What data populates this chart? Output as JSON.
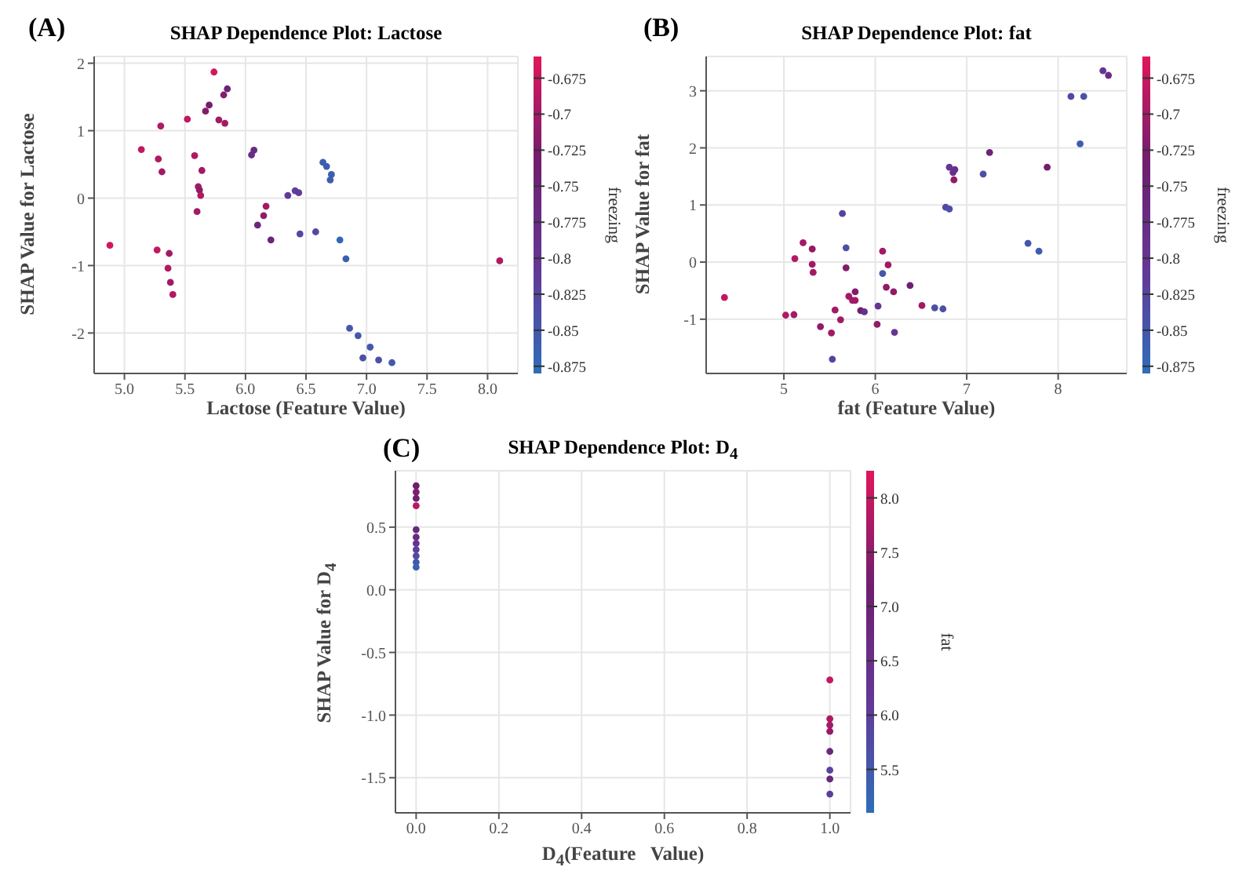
{
  "chart_data": [
    {
      "type": "scatter",
      "title": "SHAP Dependence Plot: Lactose",
      "annotations": [
        "(A)"
      ],
      "xlabel": "Lactose (Feature Value)",
      "ylabel": "SHAP Value for Lactose",
      "clabel": "freezing",
      "marker": "circle",
      "grid": true,
      "xlim": [
        4.75,
        8.25
      ],
      "ylim": [
        -2.6,
        2.1
      ],
      "xticks": [
        {
          "value": 5,
          "label": "5.0"
        },
        5.5,
        {
          "value": 6,
          "label": "6.0"
        },
        6.5,
        {
          "value": 7,
          "label": "7.0"
        },
        7.5,
        {
          "value": 8,
          "label": "8.0"
        }
      ],
      "yticks": [
        -2,
        -1,
        0,
        1,
        2
      ],
      "clim": [
        -0.88,
        -0.66
      ],
      "cticks": [
        -0.875,
        -0.85,
        -0.825,
        -0.8,
        -0.775,
        -0.75,
        -0.725,
        -0.7,
        -0.675
      ],
      "x": [
        4.88,
        5.14,
        5.27,
        5.28,
        5.3,
        5.31,
        5.36,
        5.37,
        5.38,
        5.4,
        5.52,
        5.58,
        5.6,
        5.61,
        5.62,
        5.63,
        5.64,
        5.67,
        5.7,
        5.74,
        5.78,
        5.82,
        5.83,
        5.85,
        6.05,
        6.07,
        6.1,
        6.15,
        6.17,
        6.21,
        6.35,
        6.41,
        6.44,
        6.45,
        6.58,
        6.64,
        6.67,
        6.7,
        6.71,
        6.78,
        6.83,
        6.86,
        6.93,
        6.97,
        7.03,
        7.1,
        7.21,
        8.1
      ],
      "values": [
        -0.7,
        0.72,
        -0.77,
        0.58,
        1.07,
        0.39,
        -1.04,
        -0.82,
        -1.25,
        -1.43,
        1.17,
        0.63,
        -0.2,
        0.17,
        0.12,
        0.04,
        0.41,
        1.29,
        1.38,
        1.87,
        1.16,
        1.53,
        1.11,
        1.62,
        0.64,
        0.71,
        -0.4,
        -0.26,
        -0.12,
        -0.62,
        0.04,
        0.11,
        0.08,
        -0.53,
        -0.5,
        0.53,
        0.47,
        0.27,
        0.35,
        -0.62,
        -0.9,
        -1.93,
        -2.04,
        -2.37,
        -2.21,
        -2.4,
        -2.44,
        -0.93
      ],
      "cvalues": [
        -0.67,
        -0.68,
        -0.68,
        -0.69,
        -0.69,
        -0.7,
        -0.69,
        -0.7,
        -0.7,
        -0.69,
        -0.68,
        -0.69,
        -0.7,
        -0.7,
        -0.71,
        -0.69,
        -0.7,
        -0.72,
        -0.73,
        -0.67,
        -0.7,
        -0.72,
        -0.7,
        -0.75,
        -0.78,
        -0.77,
        -0.76,
        -0.71,
        -0.7,
        -0.75,
        -0.81,
        -0.82,
        -0.81,
        -0.83,
        -0.83,
        -0.86,
        -0.86,
        -0.86,
        -0.86,
        -0.87,
        -0.86,
        -0.85,
        -0.85,
        -0.84,
        -0.85,
        -0.84,
        -0.85,
        -0.69
      ]
    },
    {
      "type": "scatter",
      "title": "SHAP Dependence Plot: fat",
      "annotations": [
        "(B)"
      ],
      "xlabel": "fat (Feature Value)",
      "ylabel": "SHAP Value for fat",
      "clabel": "freezing",
      "marker": "circle",
      "grid": true,
      "xlim": [
        4.15,
        8.75
      ],
      "ylim": [
        -1.95,
        3.6
      ],
      "xticks": [
        5,
        6,
        7,
        8
      ],
      "yticks": [
        -1,
        0,
        1,
        2,
        3
      ],
      "clim": [
        -0.88,
        -0.66
      ],
      "cticks": [
        -0.875,
        -0.85,
        -0.825,
        -0.8,
        -0.775,
        -0.75,
        -0.725,
        -0.7,
        -0.675
      ],
      "x": [
        4.35,
        5.02,
        5.11,
        5.12,
        5.21,
        5.31,
        5.31,
        5.32,
        5.4,
        5.52,
        5.53,
        5.56,
        5.62,
        5.64,
        5.68,
        5.68,
        5.71,
        5.75,
        5.78,
        5.78,
        5.84,
        5.88,
        6.02,
        6.03,
        6.08,
        6.08,
        6.12,
        6.14,
        6.2,
        6.21,
        6.38,
        6.51,
        6.65,
        6.74,
        6.77,
        6.81,
        6.81,
        6.85,
        6.86,
        6.87,
        7.18,
        7.25,
        7.67,
        7.79,
        7.88,
        8.14,
        8.24,
        8.28,
        8.49,
        8.55
      ],
      "values": [
        -0.62,
        -0.93,
        -0.92,
        0.06,
        0.34,
        0.23,
        -0.04,
        -0.18,
        -1.13,
        -1.24,
        -1.7,
        -0.84,
        -1.01,
        0.85,
        0.25,
        -0.1,
        -0.6,
        -0.67,
        -0.67,
        -0.52,
        -0.85,
        -0.87,
        -1.09,
        -0.77,
        -0.2,
        0.19,
        -0.44,
        -0.05,
        -0.52,
        -1.23,
        -0.41,
        -0.76,
        -0.8,
        -0.82,
        0.96,
        0.93,
        1.66,
        1.57,
        1.44,
        1.62,
        1.54,
        1.92,
        0.33,
        0.19,
        1.66,
        2.9,
        2.07,
        2.9,
        3.35,
        3.27
      ],
      "cvalues": [
        -0.68,
        -0.69,
        -0.7,
        -0.69,
        -0.7,
        -0.71,
        -0.7,
        -0.7,
        -0.71,
        -0.7,
        -0.82,
        -0.7,
        -0.7,
        -0.82,
        -0.84,
        -0.72,
        -0.7,
        -0.7,
        -0.7,
        -0.72,
        -0.73,
        -0.79,
        -0.71,
        -0.8,
        -0.85,
        -0.7,
        -0.71,
        -0.7,
        -0.71,
        -0.8,
        -0.74,
        -0.7,
        -0.84,
        -0.84,
        -0.83,
        -0.84,
        -0.8,
        -0.79,
        -0.71,
        -0.79,
        -0.84,
        -0.75,
        -0.85,
        -0.86,
        -0.73,
        -0.83,
        -0.86,
        -0.84,
        -0.8,
        -0.78
      ]
    },
    {
      "type": "scatter",
      "title": "SHAP Dependence Plot: D$_{4}$",
      "annotations": [
        "(C)"
      ],
      "xlabel": "D$_{4}$(Feature   Value)",
      "ylabel": "SHAP Value for D$_{4}$",
      "clabel": "fat",
      "marker": "circle",
      "grid": true,
      "xlim": [
        -0.05,
        1.05
      ],
      "ylim": [
        -1.78,
        0.95
      ],
      "xticks": [
        {
          "value": 0,
          "label": "0.0"
        },
        0.2,
        0.4,
        0.6,
        0.8,
        {
          "value": 1,
          "label": "1.0"
        }
      ],
      "yticks": [
        {
          "value": -1.5,
          "label": "-1.5"
        },
        {
          "value": -1,
          "label": "-1.0"
        },
        -0.5,
        {
          "value": 0,
          "label": "0.0"
        },
        0.5
      ],
      "clim": [
        5.1,
        8.25
      ],
      "cticks": [
        5.5,
        {
          "value": 6,
          "label": "6.0"
        },
        6.5,
        {
          "value": 7,
          "label": "7.0"
        },
        7.5,
        {
          "value": 8,
          "label": "8.0"
        }
      ],
      "x": [
        0,
        0,
        0,
        0,
        0,
        0,
        0,
        0,
        0,
        0,
        0,
        1,
        1,
        1,
        1,
        1,
        1,
        1,
        1
      ],
      "values": [
        0.83,
        0.78,
        0.73,
        0.67,
        0.48,
        0.42,
        0.37,
        0.32,
        0.27,
        0.22,
        0.18,
        -0.72,
        -1.03,
        -1.08,
        -1.13,
        -1.29,
        -1.44,
        -1.51,
        -1.63
      ],
      "cvalues": [
        7.2,
        7.4,
        7.1,
        7.9,
        6.8,
        6.7,
        6.3,
        6.0,
        5.8,
        5.5,
        5.3,
        8.0,
        7.8,
        7.7,
        7.6,
        6.8,
        5.9,
        6.8,
        6.0
      ]
    }
  ]
}
